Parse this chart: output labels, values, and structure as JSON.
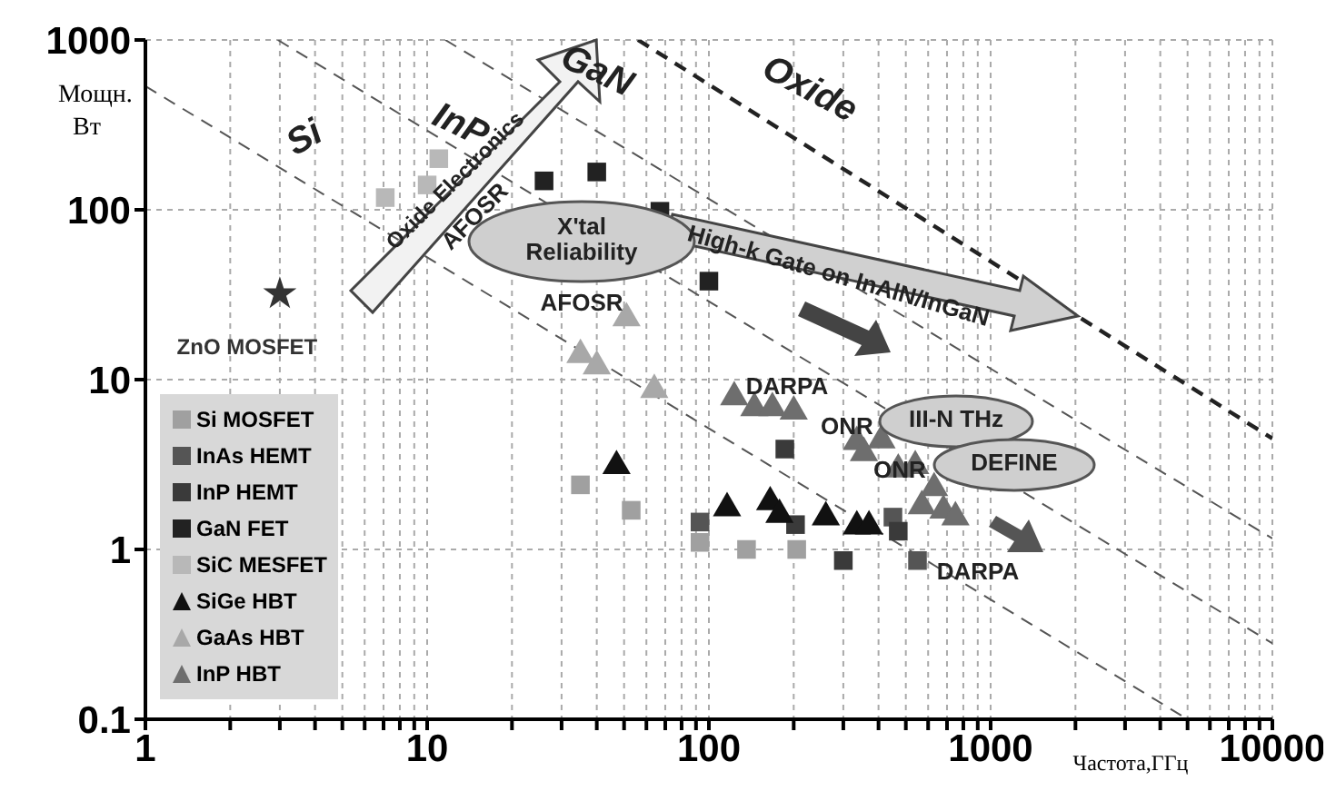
{
  "chart_data": {
    "type": "scatter",
    "xlabel": "Частота,ГГц",
    "ylabel": "Мощн.\nВт",
    "log": "xy",
    "grid": true,
    "legend": "bottom left",
    "xlim": [
      1,
      10000
    ],
    "ylim": [
      0.1,
      1000
    ],
    "xticks": [
      1,
      {
        "value": 2,
        "label": null
      },
      {
        "value": 3,
        "label": null
      },
      {
        "value": 4,
        "label": null
      },
      {
        "value": 5,
        "label": null
      },
      {
        "value": 6,
        "label": null
      },
      {
        "value": 7,
        "label": null
      },
      {
        "value": 8,
        "label": null
      },
      {
        "value": 9,
        "label": null
      },
      10,
      {
        "value": 20,
        "label": null
      },
      {
        "value": 30,
        "label": null
      },
      {
        "value": 40,
        "label": null
      },
      {
        "value": 50,
        "label": null
      },
      {
        "value": 60,
        "label": null
      },
      {
        "value": 70,
        "label": null
      },
      {
        "value": 80,
        "label": null
      },
      {
        "value": 90,
        "label": null
      },
      100,
      {
        "value": 200,
        "label": null
      },
      {
        "value": 300,
        "label": null
      },
      {
        "value": 400,
        "label": null
      },
      {
        "value": 500,
        "label": null
      },
      {
        "value": 600,
        "label": null
      },
      {
        "value": 700,
        "label": null
      },
      {
        "value": 800,
        "label": null
      },
      {
        "value": 900,
        "label": null
      },
      1000,
      {
        "value": 2000,
        "label": null
      },
      {
        "value": 3000,
        "label": null
      },
      {
        "value": 4000,
        "label": null
      },
      {
        "value": 5000,
        "label": null
      },
      {
        "value": 6000,
        "label": null
      },
      {
        "value": 7000,
        "label": null
      },
      {
        "value": 8000,
        "label": null
      },
      {
        "value": 9000,
        "label": null
      },
      10000
    ],
    "yticks": [
      0.1,
      1,
      10,
      100,
      1000
    ],
    "series": [
      {
        "name": "Si MOSFET",
        "marker": "square",
        "color": "#a0a0a0",
        "x": [
          35,
          53,
          93,
          136,
          205
        ],
        "values": [
          2.4,
          1.7,
          1.1,
          1.0,
          1.0
        ]
      },
      {
        "name": "InAs HEMT",
        "marker": "square",
        "color": "#555555",
        "x": [
          93,
          450,
          550
        ],
        "values": [
          1.45,
          1.55,
          0.86
        ]
      },
      {
        "name": "InP HEMT",
        "marker": "square",
        "color": "#3a3a3a",
        "x": [
          186,
          203,
          300,
          470
        ],
        "values": [
          3.9,
          1.4,
          0.86,
          1.28
        ]
      },
      {
        "name": "GaN FET",
        "marker": "square",
        "color": "#222222",
        "x": [
          26,
          40,
          67,
          100
        ],
        "values": [
          148,
          167,
          98,
          38
        ]
      },
      {
        "name": "SiC MESFET",
        "marker": "square",
        "color": "#b8b8b8",
        "x": [
          7.1,
          10,
          11
        ],
        "values": [
          118,
          140,
          200
        ]
      },
      {
        "name": "SiGe HBT",
        "marker": "triangle",
        "color": "#111111",
        "x": [
          47,
          116,
          165,
          178,
          260,
          335,
          370
        ],
        "values": [
          3.1,
          1.75,
          1.9,
          1.6,
          1.55,
          1.37,
          1.37
        ]
      },
      {
        "name": "GaAs HBT",
        "marker": "triangle",
        "color": "#a8a8a8",
        "x": [
          51,
          35,
          40,
          64
        ],
        "values": [
          23,
          14,
          12,
          8.7
        ]
      },
      {
        "name": "InP HBT",
        "marker": "triangle",
        "color": "#6e6e6e",
        "x": [
          123,
          145,
          168,
          200,
          335,
          410,
          355,
          470,
          540,
          630,
          570,
          680,
          750
        ],
        "values": [
          7.9,
          6.8,
          6.8,
          6.5,
          4.3,
          4.4,
          3.7,
          2.96,
          3.1,
          2.3,
          1.8,
          1.7,
          1.55
        ]
      },
      {
        "marker": "star",
        "color": "#333333",
        "x": [
          3
        ],
        "values": [
          32
        ]
      },
      {
        "type": "line",
        "line_style": "dashed",
        "color": "#555555",
        "x": [
          1,
          5000
        ],
        "values": [
          535,
          0.1
        ]
      },
      {
        "type": "line",
        "line_style": "dashed",
        "color": "#555555",
        "x": [
          2.95,
          10000
        ],
        "values": [
          1000,
          0.28
        ]
      },
      {
        "type": "line",
        "line_style": "dashed",
        "color": "#555555",
        "x": [
          11.6,
          10000
        ],
        "values": [
          1000,
          1.16
        ]
      },
      {
        "type": "line",
        "line_style": "dashed",
        "color": "#222222",
        "x": [
          56,
          10000
        ],
        "values": [
          1000,
          4.5
        ]
      }
    ],
    "annotations": [
      {
        "text": "ZnO MOSFET",
        "x": 3,
        "y": 32
      },
      "Si",
      "InP",
      "GaN",
      "Oxide",
      "Oxide Electronics",
      "AFOSR",
      "X'tal Reliability",
      "AFOSR",
      "High-k Gate on InAlN/InGaN",
      "DARPA",
      "ONR",
      "III-N THz",
      "ONR",
      "DEFINE",
      "DARPA"
    ]
  }
}
